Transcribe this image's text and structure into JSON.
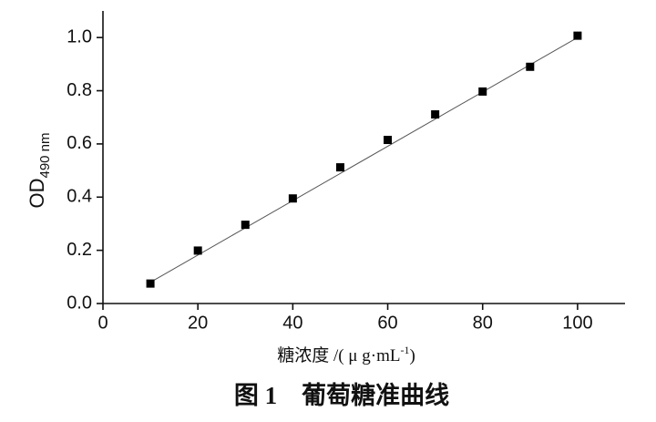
{
  "chart_data": {
    "type": "scatter",
    "x": [
      10,
      20,
      30,
      40,
      50,
      60,
      70,
      80,
      90,
      100
    ],
    "values": [
      0.075,
      0.199,
      0.296,
      0.395,
      0.512,
      0.615,
      0.711,
      0.797,
      0.89,
      1.007
    ],
    "color": "#000000",
    "fit_line": {
      "x": [
        10,
        100
      ],
      "y": [
        0.08,
        1.0
      ],
      "color": "#555555"
    },
    "xlim": [
      0,
      110
    ],
    "ylim": [
      0,
      1.1
    ],
    "xticks": [
      0,
      20,
      40,
      60,
      80,
      100
    ],
    "yticks": [
      {
        "value": 0,
        "label": "0.0"
      },
      0.2,
      0.4,
      0.6,
      0.8,
      {
        "value": 1,
        "label": "1.0"
      }
    ],
    "ylabel": "OD",
    "ylabel_sub": "490 nm",
    "xlabel": "糖浓度 /( μ g·mL",
    "xlabel_sup": "-1",
    "xlabel_end": ")",
    "caption": "图 1　葡萄糖准曲线"
  }
}
